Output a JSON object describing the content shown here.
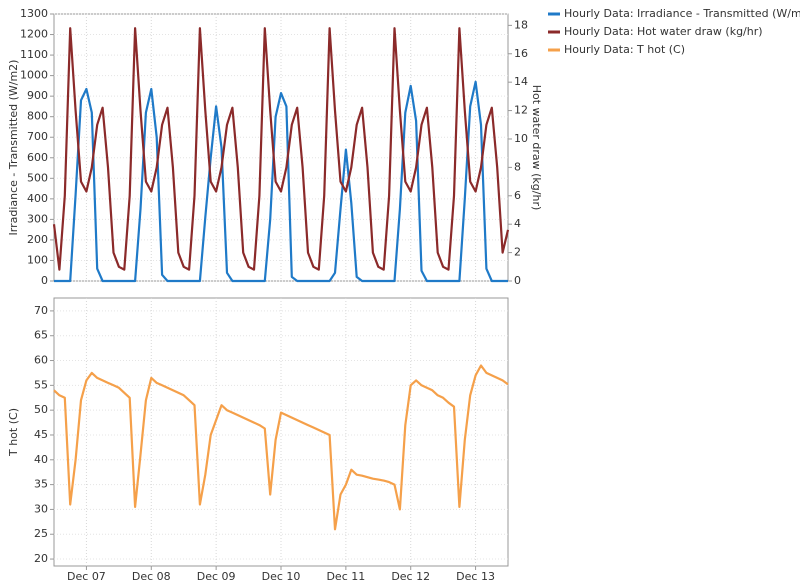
{
  "chart_data": [
    {
      "type": "line",
      "ylabel": "Irradiance - Transmitted (W/m2)",
      "y2label": "Hot water draw (kg/hr)",
      "x": [
        0,
        2,
        4,
        6,
        8,
        10,
        12,
        14,
        16,
        18,
        20,
        22,
        24,
        26,
        28,
        30,
        32,
        34,
        36,
        38,
        40,
        42,
        44,
        46,
        48,
        50,
        52,
        54,
        56,
        58,
        60,
        62,
        64,
        66,
        68,
        70,
        72,
        74,
        76,
        78,
        80,
        82,
        84,
        86,
        88,
        90,
        92,
        94,
        96,
        98,
        100,
        102,
        104,
        106,
        108,
        110,
        112,
        114,
        116,
        118,
        120,
        122,
        124,
        126,
        128,
        130,
        132,
        134,
        136,
        138,
        140,
        142,
        144,
        146,
        148,
        150,
        152,
        154,
        156,
        158,
        160,
        162,
        164,
        166,
        168
      ],
      "xlim": [
        0,
        168
      ],
      "xticks": [
        12,
        36,
        60,
        84,
        108,
        132,
        156
      ],
      "ylim": [
        0,
        1300
      ],
      "yticks": [
        0,
        100,
        200,
        300,
        400,
        500,
        600,
        700,
        800,
        900,
        1000,
        1100,
        1200,
        1300
      ],
      "y2lim": [
        0,
        18.8
      ],
      "y2ticks": [
        0,
        2,
        4,
        6,
        8,
        10,
        12,
        14,
        16,
        18
      ],
      "grid": true,
      "series": [
        {
          "name": "Hourly Data: Irradiance - Transmitted (W/m2)",
          "color": "#1f7ac8",
          "values": [
            0,
            0,
            0,
            0,
            420,
            880,
            935,
            820,
            60,
            0,
            0,
            0,
            0,
            0,
            0,
            0,
            350,
            820,
            935,
            700,
            30,
            0,
            0,
            0,
            0,
            0,
            0,
            0,
            310,
            600,
            850,
            650,
            40,
            0,
            0,
            0,
            0,
            0,
            0,
            0,
            300,
            800,
            915,
            850,
            20,
            0,
            0,
            0,
            0,
            0,
            0,
            0,
            40,
            350,
            640,
            380,
            20,
            0,
            0,
            0,
            0,
            0,
            0,
            0,
            350,
            820,
            950,
            780,
            50,
            0,
            0,
            0,
            0,
            0,
            0,
            0,
            400,
            850,
            970,
            760,
            60,
            0,
            0,
            0,
            0
          ]
        },
        {
          "name": "Hourly Data: Hot water draw (kg/hr)",
          "color": "#8b2a2a",
          "axis": "y2",
          "values": [
            4,
            0.8,
            6,
            17.8,
            12,
            7,
            6.3,
            8,
            11,
            12.2,
            8,
            2,
            1,
            0.8,
            6,
            17.8,
            12,
            7,
            6.3,
            8,
            11,
            12.2,
            8,
            2,
            1,
            0.8,
            6,
            17.8,
            12,
            7,
            6.3,
            8,
            11,
            12.2,
            8,
            2,
            1,
            0.8,
            6,
            17.8,
            12,
            7,
            6.3,
            8,
            11,
            12.2,
            8,
            2,
            1,
            0.8,
            6,
            17.8,
            12,
            7,
            6.3,
            8,
            11,
            12.2,
            8,
            2,
            1,
            0.8,
            6,
            17.8,
            12,
            7,
            6.3,
            8,
            11,
            12.2,
            8,
            2,
            1,
            0.8,
            6,
            17.8,
            12,
            7,
            6.3,
            8,
            11,
            12.2,
            8,
            2,
            3.6
          ]
        }
      ]
    },
    {
      "type": "line",
      "ylabel": "T hot (C)",
      "x": [
        0,
        2,
        4,
        6,
        8,
        10,
        12,
        14,
        16,
        18,
        20,
        22,
        24,
        26,
        28,
        30,
        32,
        34,
        36,
        38,
        40,
        42,
        44,
        46,
        48,
        50,
        52,
        54,
        56,
        58,
        60,
        62,
        64,
        66,
        68,
        70,
        72,
        74,
        76,
        78,
        80,
        82,
        84,
        86,
        88,
        90,
        92,
        94,
        96,
        98,
        100,
        102,
        104,
        106,
        108,
        110,
        112,
        114,
        116,
        118,
        120,
        122,
        124,
        126,
        128,
        130,
        132,
        134,
        136,
        138,
        140,
        142,
        144,
        146,
        148,
        150,
        152,
        154,
        156,
        158,
        160,
        162,
        164,
        166,
        168
      ],
      "xlim": [
        0,
        168
      ],
      "xticks": [
        {
          "value": 12,
          "label": "Dec 07"
        },
        {
          "value": 36,
          "label": "Dec 08"
        },
        {
          "value": 60,
          "label": "Dec 09"
        },
        {
          "value": 84,
          "label": "Dec 10"
        },
        {
          "value": 108,
          "label": "Dec 11"
        },
        {
          "value": 132,
          "label": "Dec 12"
        },
        {
          "value": 156,
          "label": "Dec 13"
        }
      ],
      "ylim": [
        18.6,
        72.6
      ],
      "yticks": [
        20,
        25,
        30,
        35,
        40,
        45,
        50,
        55,
        60,
        65,
        70
      ],
      "grid": true,
      "series": [
        {
          "name": "Hourly Data: T hot (C)",
          "color": "#f5a04a",
          "values": [
            54,
            53,
            52.5,
            31,
            40,
            52,
            56,
            57.5,
            56.5,
            56,
            55.5,
            55,
            54.5,
            53.5,
            52.5,
            30.5,
            41,
            52,
            56.5,
            55.5,
            55,
            54.5,
            54,
            53.5,
            53,
            52,
            51,
            31,
            37,
            45,
            48,
            51,
            50,
            49.5,
            49,
            48.5,
            48,
            47.5,
            47,
            46.3,
            33,
            44,
            49.5,
            49,
            48.5,
            48,
            47.5,
            47,
            46.5,
            46,
            45.5,
            45,
            26,
            33,
            35,
            38,
            37,
            36.8,
            36.5,
            36.2,
            36,
            35.8,
            35.5,
            35,
            30,
            47,
            55,
            56,
            55,
            54.5,
            54,
            53,
            52.5,
            51.5,
            50.7,
            30.5,
            44,
            53,
            57,
            59,
            57.5,
            57,
            56.5,
            56,
            55.2
          ]
        }
      ]
    }
  ]
}
